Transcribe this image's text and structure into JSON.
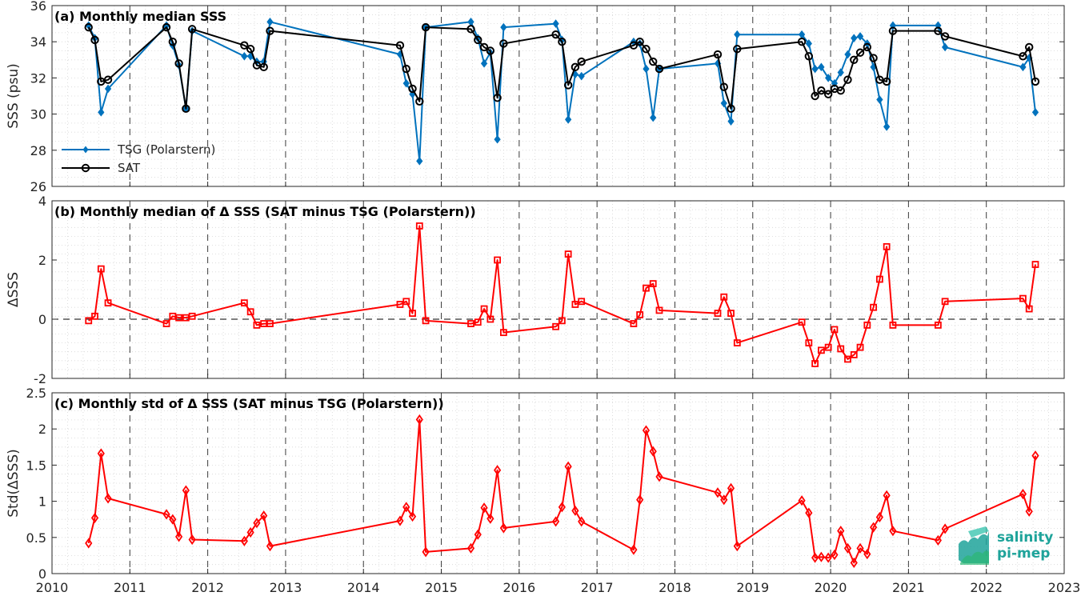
{
  "chart_data": [
    {
      "type": "line",
      "title": "(a) Monthly median SSS",
      "ylabel": "SSS (psu)",
      "xlim": [
        2010,
        2023
      ],
      "ylim": [
        26,
        36
      ],
      "yticks": [
        "26",
        "28",
        "30",
        "32",
        "34",
        "36"
      ],
      "grid": true,
      "legend_position": "lower-left",
      "series": [
        {
          "name": "TSG (Polarstern)",
          "color": "#0072BD",
          "marker": "filled-diamond",
          "x": [
            2010.47,
            2010.55,
            2010.63,
            2010.72,
            2011.47,
            2011.55,
            2011.63,
            2011.72,
            2011.8,
            2012.47,
            2012.55,
            2012.63,
            2012.72,
            2012.8,
            2014.47,
            2014.55,
            2014.63,
            2014.72,
            2014.8,
            2015.38,
            2015.47,
            2015.55,
            2015.63,
            2015.72,
            2015.8,
            2016.47,
            2016.55,
            2016.63,
            2016.72,
            2016.8,
            2017.47,
            2017.55,
            2017.63,
            2017.72,
            2017.8,
            2018.55,
            2018.63,
            2018.72,
            2018.8,
            2019.63,
            2019.72,
            2019.8,
            2019.88,
            2019.97,
            2020.05,
            2020.13,
            2020.22,
            2020.3,
            2020.38,
            2020.47,
            2020.55,
            2020.63,
            2020.72,
            2020.8,
            2021.38,
            2021.47,
            2022.47,
            2022.55,
            2022.63
          ],
          "y": [
            34.9,
            34.2,
            30.1,
            31.4,
            34.9,
            33.8,
            32.7,
            30.3,
            34.6,
            33.2,
            33.2,
            32.9,
            32.9,
            35.1,
            33.3,
            31.7,
            31.1,
            27.4,
            34.8,
            35.1,
            34.2,
            32.8,
            33.4,
            28.6,
            34.8,
            35.0,
            34.1,
            29.7,
            32.2,
            32.1,
            34.0,
            33.9,
            32.5,
            29.8,
            32.5,
            32.8,
            30.6,
            29.6,
            34.4,
            34.4,
            33.9,
            32.5,
            32.6,
            32.0,
            31.7,
            32.3,
            33.3,
            34.2,
            34.3,
            33.9,
            32.6,
            30.8,
            29.3,
            34.9,
            34.9,
            33.7,
            32.6,
            33.1,
            30.1
          ]
        },
        {
          "name": "SAT",
          "color": "#000000",
          "marker": "open-circle",
          "x": [
            2010.47,
            2010.55,
            2010.63,
            2010.72,
            2011.47,
            2011.55,
            2011.63,
            2011.72,
            2011.8,
            2012.47,
            2012.55,
            2012.63,
            2012.72,
            2012.8,
            2014.47,
            2014.55,
            2014.63,
            2014.72,
            2014.8,
            2015.38,
            2015.47,
            2015.55,
            2015.63,
            2015.72,
            2015.8,
            2016.47,
            2016.55,
            2016.63,
            2016.72,
            2016.8,
            2017.47,
            2017.55,
            2017.63,
            2017.72,
            2017.8,
            2018.55,
            2018.63,
            2018.72,
            2018.8,
            2019.63,
            2019.72,
            2019.8,
            2019.88,
            2019.97,
            2020.05,
            2020.13,
            2020.22,
            2020.3,
            2020.38,
            2020.47,
            2020.55,
            2020.63,
            2020.72,
            2020.8,
            2021.38,
            2021.47,
            2022.47,
            2022.55,
            2022.63
          ],
          "y": [
            34.8,
            34.1,
            31.8,
            31.9,
            34.8,
            34.0,
            32.8,
            30.3,
            34.7,
            33.8,
            33.6,
            32.7,
            32.6,
            34.6,
            33.8,
            32.5,
            31.4,
            30.7,
            34.8,
            34.7,
            34.1,
            33.7,
            33.5,
            30.9,
            33.9,
            34.4,
            34.0,
            31.6,
            32.6,
            32.9,
            33.8,
            34.0,
            33.6,
            32.9,
            32.5,
            33.3,
            31.5,
            30.3,
            33.6,
            34.0,
            33.2,
            31.0,
            31.3,
            31.1,
            31.4,
            31.3,
            31.9,
            33.0,
            33.4,
            33.7,
            33.1,
            31.9,
            31.8,
            34.6,
            34.6,
            34.3,
            33.2,
            33.7,
            31.8
          ]
        }
      ]
    },
    {
      "type": "line",
      "title": "(b) Monthly median of Δ SSS (SAT minus TSG (Polarstern))",
      "ylabel": "ΔSSS",
      "xlim": [
        2010,
        2023
      ],
      "ylim": [
        -2,
        4
      ],
      "yticks": [
        "-2",
        "0",
        "2",
        "4"
      ],
      "grid": true,
      "zero_line": true,
      "series": [
        {
          "name": "",
          "color": "#FF0000",
          "marker": "open-square",
          "x": [
            2010.47,
            2010.55,
            2010.63,
            2010.72,
            2011.47,
            2011.55,
            2011.63,
            2011.72,
            2011.8,
            2012.47,
            2012.55,
            2012.63,
            2012.72,
            2012.8,
            2014.47,
            2014.55,
            2014.63,
            2014.72,
            2014.8,
            2015.38,
            2015.47,
            2015.55,
            2015.63,
            2015.72,
            2015.8,
            2016.47,
            2016.55,
            2016.63,
            2016.72,
            2016.8,
            2017.47,
            2017.55,
            2017.63,
            2017.72,
            2017.8,
            2018.55,
            2018.63,
            2018.72,
            2018.8,
            2019.63,
            2019.72,
            2019.8,
            2019.88,
            2019.97,
            2020.05,
            2020.13,
            2020.22,
            2020.3,
            2020.38,
            2020.47,
            2020.55,
            2020.63,
            2020.72,
            2020.8,
            2021.38,
            2021.47,
            2022.47,
            2022.55,
            2022.63
          ],
          "y": [
            -0.05,
            0.1,
            1.7,
            0.55,
            -0.15,
            0.1,
            0.05,
            0.05,
            0.1,
            0.55,
            0.25,
            -0.2,
            -0.15,
            -0.15,
            0.5,
            0.6,
            0.2,
            3.15,
            -0.05,
            -0.15,
            -0.1,
            0.35,
            0.0,
            2.0,
            -0.45,
            -0.25,
            -0.05,
            2.2,
            0.5,
            0.6,
            -0.15,
            0.15,
            1.05,
            1.2,
            0.3,
            0.2,
            0.75,
            0.2,
            -0.8,
            -0.1,
            -0.8,
            -1.5,
            -1.05,
            -0.95,
            -0.35,
            -1.0,
            -1.35,
            -1.2,
            -0.95,
            -0.2,
            0.4,
            1.35,
            2.45,
            -0.2,
            -0.2,
            0.6,
            0.7,
            0.35,
            1.85
          ]
        }
      ]
    },
    {
      "type": "line",
      "title": "(c) Monthly std of Δ SSS (SAT minus TSG (Polarstern))",
      "ylabel": "Std(ΔSSS)",
      "xlim": [
        2010,
        2023
      ],
      "ylim": [
        0,
        2.5
      ],
      "yticks": [
        "0",
        "0.5",
        "1",
        "1.5",
        "2",
        "2.5"
      ],
      "xticks": [
        "2010",
        "2011",
        "2012",
        "2013",
        "2014",
        "2015",
        "2016",
        "2017",
        "2018",
        "2019",
        "2020",
        "2021",
        "2022",
        "2023"
      ],
      "grid": true,
      "series": [
        {
          "name": "",
          "color": "#FF0000",
          "marker": "open-diamond",
          "x": [
            2010.47,
            2010.55,
            2010.63,
            2010.72,
            2011.47,
            2011.55,
            2011.63,
            2011.72,
            2011.8,
            2012.47,
            2012.55,
            2012.63,
            2012.72,
            2012.8,
            2014.47,
            2014.55,
            2014.63,
            2014.72,
            2014.8,
            2015.38,
            2015.47,
            2015.55,
            2015.63,
            2015.72,
            2015.8,
            2016.47,
            2016.55,
            2016.63,
            2016.72,
            2016.8,
            2017.47,
            2017.55,
            2017.63,
            2017.72,
            2017.8,
            2018.55,
            2018.63,
            2018.72,
            2018.8,
            2019.63,
            2019.72,
            2019.8,
            2019.88,
            2019.97,
            2020.05,
            2020.13,
            2020.22,
            2020.3,
            2020.38,
            2020.47,
            2020.55,
            2020.63,
            2020.72,
            2020.8,
            2021.38,
            2021.47,
            2022.47,
            2022.55,
            2022.63
          ],
          "y": [
            0.42,
            0.77,
            1.66,
            1.04,
            0.82,
            0.75,
            0.51,
            1.15,
            0.47,
            0.45,
            0.57,
            0.7,
            0.8,
            0.38,
            0.73,
            0.92,
            0.79,
            2.13,
            0.3,
            0.35,
            0.54,
            0.91,
            0.76,
            1.43,
            0.63,
            0.72,
            0.92,
            1.48,
            0.87,
            0.72,
            0.33,
            1.02,
            1.98,
            1.69,
            1.34,
            1.12,
            1.02,
            1.18,
            0.38,
            1.01,
            0.84,
            0.22,
            0.23,
            0.22,
            0.26,
            0.59,
            0.35,
            0.15,
            0.35,
            0.27,
            0.64,
            0.78,
            1.08,
            0.59,
            0.46,
            0.62,
            1.1,
            0.86,
            1.63
          ]
        }
      ]
    }
  ],
  "logo": {
    "text_line1": "salinity",
    "text_line2": "pi-mep",
    "color_teal": "#1ea39a",
    "color_green": "#2bb673"
  }
}
